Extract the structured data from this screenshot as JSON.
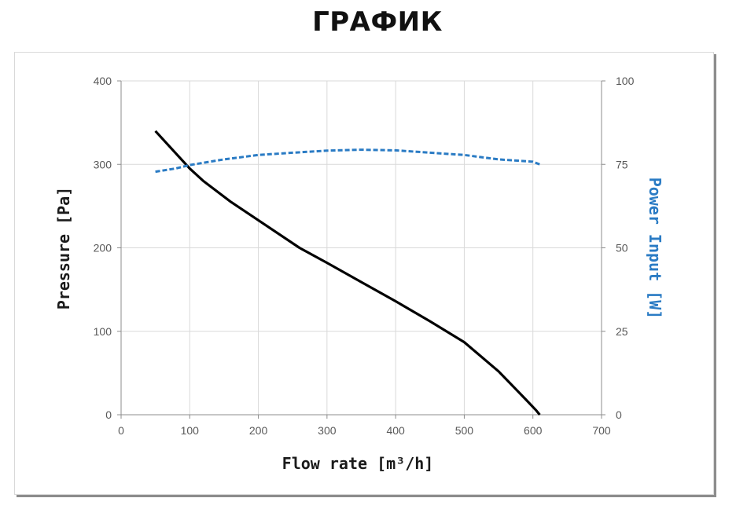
{
  "page": {
    "title": "ГРАФИК"
  },
  "chart_data": {
    "type": "line",
    "xlabel": "Flow rate [m³/h]",
    "ylabel_left": "Pressure [Pa]",
    "ylabel_right": "Power Input [W]",
    "xlim": [
      0,
      700
    ],
    "ylim_left": [
      0,
      400
    ],
    "ylim_right": [
      0,
      100
    ],
    "x_ticks": [
      "0",
      "100",
      "200",
      "300",
      "400",
      "500",
      "600",
      "700"
    ],
    "y_left_ticks": [
      "0",
      "100",
      "200",
      "300",
      "400"
    ],
    "y_right_ticks": [
      "0",
      "25",
      "50",
      "75",
      "100"
    ],
    "grid": true,
    "series": [
      {
        "axis": "left",
        "color": "#000000",
        "style": "solid",
        "x": [
          50,
          80,
          100,
          120,
          160,
          200,
          260,
          300,
          350,
          400,
          450,
          500,
          550,
          590,
          605,
          610
        ],
        "y": [
          340,
          313,
          295,
          280,
          255,
          233,
          200,
          182,
          159,
          136,
          112,
          87,
          52,
          18,
          5,
          0
        ]
      },
      {
        "axis": "right",
        "color": "#2a7bc4",
        "style": "dashed",
        "x": [
          50,
          80,
          100,
          150,
          200,
          250,
          300,
          350,
          400,
          450,
          500,
          550,
          600,
          610
        ],
        "y": [
          72.8,
          73.8,
          74.8,
          76.5,
          77.8,
          78.5,
          79.1,
          79.4,
          79.2,
          78.5,
          77.8,
          76.5,
          75.8,
          75.0
        ]
      }
    ]
  }
}
